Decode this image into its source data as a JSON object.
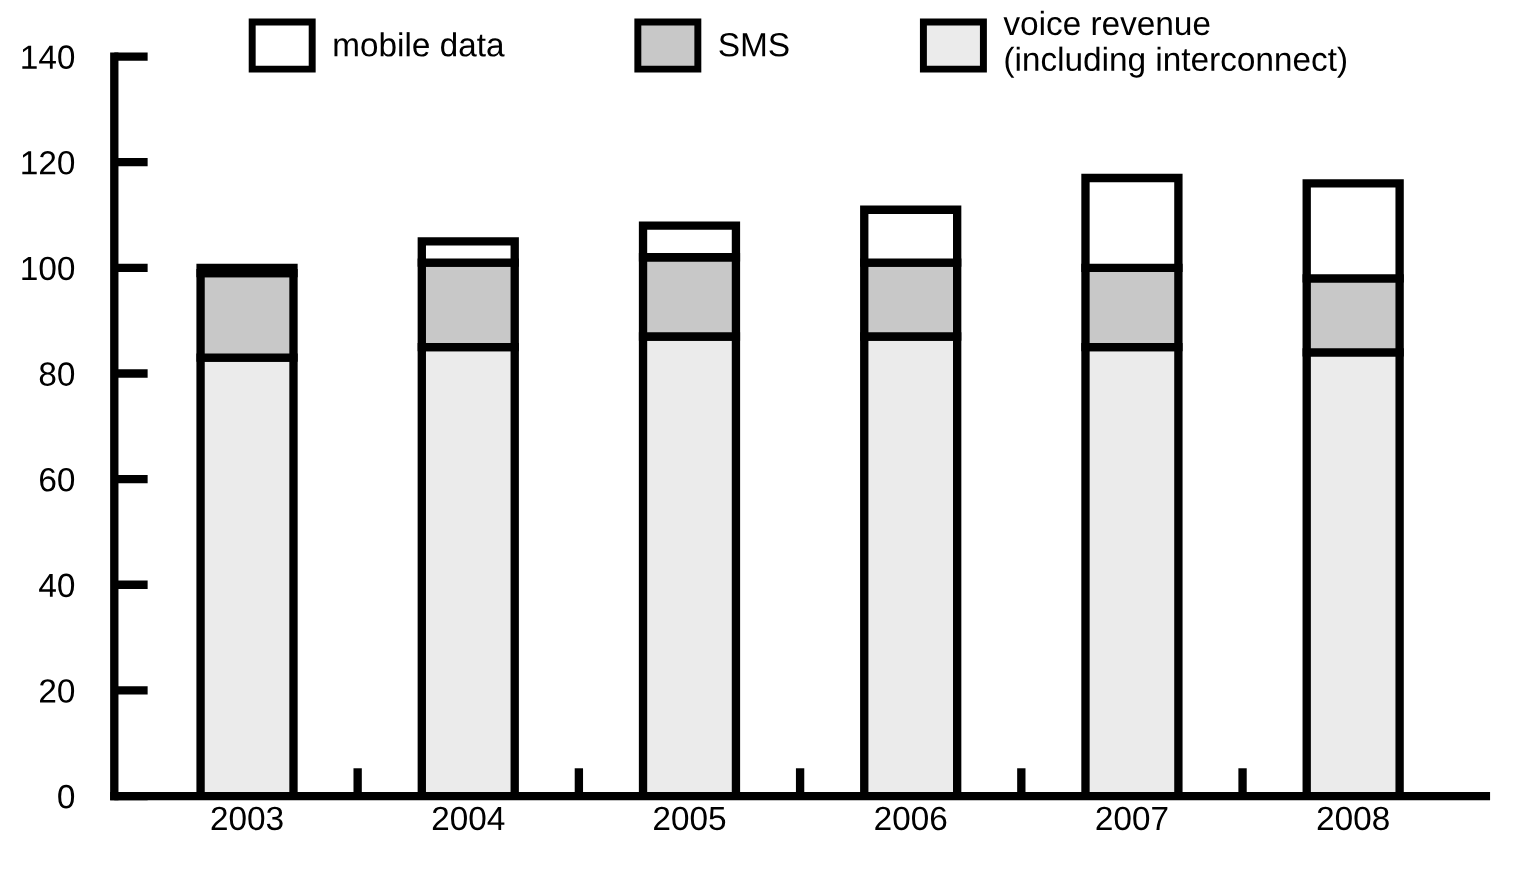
{
  "chart_data": {
    "type": "bar",
    "stacked": true,
    "categories": [
      "2003",
      "2004",
      "2005",
      "2006",
      "2007",
      "2008"
    ],
    "series": [
      {
        "name": "voice revenue\n(including interconnect)",
        "color": "#ebebeb",
        "values": [
          83,
          85,
          87,
          87,
          85,
          84
        ]
      },
      {
        "name": "SMS",
        "color": "#c8c8c8",
        "values": [
          16,
          16,
          15,
          14,
          15,
          14
        ]
      },
      {
        "name": "mobile data",
        "color": "#ffffff",
        "values": [
          1,
          4,
          6,
          10,
          17,
          18
        ]
      }
    ],
    "ylim": [
      0,
      140
    ],
    "yticks": [
      0,
      20,
      40,
      60,
      80,
      100,
      120,
      140
    ],
    "grid": false,
    "legend": "top"
  }
}
